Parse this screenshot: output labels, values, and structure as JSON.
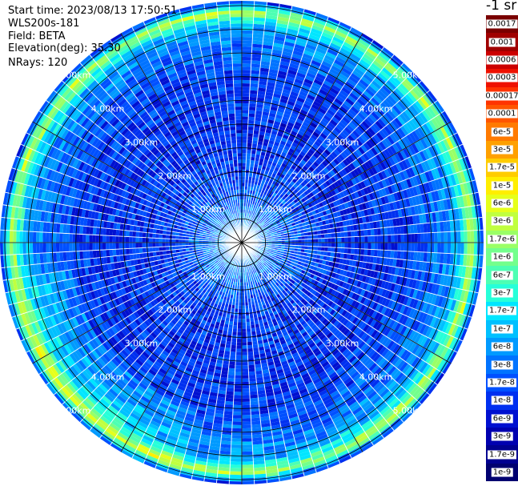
{
  "header": {
    "start_time": "Start time: 2023/08/13 17:50:51",
    "instrument": "WLS200s-181",
    "field": "Field: BETA",
    "elevation": "Elevation(deg): 35.30",
    "nrays": "NRays: 120"
  },
  "colorbar": {
    "unit_label": "-1 sr",
    "entries": [
      {
        "label": "0.0017",
        "color": "#7a0000"
      },
      {
        "label": "0.001",
        "color": "#a00000"
      },
      {
        "label": "0.0006",
        "color": "#cc0000"
      },
      {
        "label": "0.0003",
        "color": "#ee1100"
      },
      {
        "label": "0.00017",
        "color": "#ff3300"
      },
      {
        "label": "0.0001",
        "color": "#ff5500"
      },
      {
        "label": "6e-5",
        "color": "#ff7a00"
      },
      {
        "label": "3e-5",
        "color": "#ffa000"
      },
      {
        "label": "1.7e-5",
        "color": "#ffcc00"
      },
      {
        "label": "1e-5",
        "color": "#ffee00"
      },
      {
        "label": "6e-6",
        "color": "#e6ff1a"
      },
      {
        "label": "3e-6",
        "color": "#c0ff3f"
      },
      {
        "label": "1.7e-6",
        "color": "#9aff66"
      },
      {
        "label": "1e-6",
        "color": "#73ff8c"
      },
      {
        "label": "6e-7",
        "color": "#4dffb3"
      },
      {
        "label": "3e-7",
        "color": "#26ffd9"
      },
      {
        "label": "1.7e-7",
        "color": "#00e6ff"
      },
      {
        "label": "1e-7",
        "color": "#00c0ff"
      },
      {
        "label": "6e-8",
        "color": "#009aff"
      },
      {
        "label": "3e-8",
        "color": "#0073ff"
      },
      {
        "label": "1.7e-8",
        "color": "#0050ff"
      },
      {
        "label": "1e-8",
        "color": "#0030f0"
      },
      {
        "label": "6e-9",
        "color": "#0010d0"
      },
      {
        "label": "3e-9",
        "color": "#0000b0"
      },
      {
        "label": "1.7e-9",
        "color": "#000090"
      },
      {
        "label": "1e-9",
        "color": "#000070"
      }
    ]
  },
  "chart_data": {
    "type": "heatmap",
    "projection": "polar PPI",
    "field": "BETA",
    "elevation_deg": 35.3,
    "nrays": 120,
    "range_unit": "km",
    "max_range_km": 5.1,
    "range_ring_labels": [
      "1.00km",
      "2.00km",
      "3.00km",
      "4.00km",
      "5.00km"
    ],
    "range_rings_km": [
      0.5,
      1.0,
      1.5,
      2.0,
      2.5,
      3.0,
      3.5,
      4.0,
      4.5,
      5.0
    ],
    "azimuth_spokes_deg": [
      0,
      30,
      60,
      90,
      120,
      150,
      180,
      210,
      240,
      270,
      300,
      330
    ],
    "label_azimuths_deg": [
      -45,
      45,
      135,
      225
    ],
    "color_scale": "log",
    "color_range": [
      1e-09,
      0.0017
    ],
    "range_profile": {
      "range_km": [
        0.0,
        0.5,
        1.0,
        1.5,
        2.0,
        2.5,
        3.0,
        3.5,
        4.0,
        4.5,
        4.7,
        4.85,
        4.95,
        5.05
      ],
      "beta_log10": [
        -7.1,
        -7.3,
        -7.6,
        -7.8,
        -7.9,
        -7.9,
        -7.9,
        -7.8,
        -7.6,
        -7.2,
        -6.6,
        -5.6,
        -6.5,
        -7.8
      ]
    },
    "enhanced_sector_deg": [
      195,
      260
    ],
    "grid": true
  }
}
